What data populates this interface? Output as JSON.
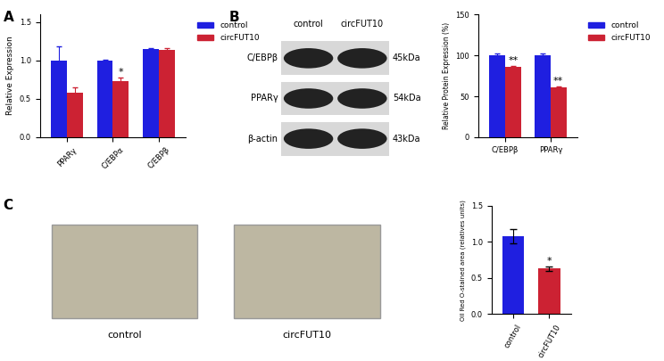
{
  "panel_labels": [
    "A",
    "B",
    "C"
  ],
  "blot": {
    "lanes": [
      "control",
      "circFUT10"
    ],
    "rows": [
      {
        "name": "C/EBPβ",
        "size": "45kDa"
      },
      {
        "name": "PPARγ",
        "size": "54kDa"
      },
      {
        "name": "β-actin",
        "size": "43kDa"
      }
    ]
  },
  "images": {
    "labels": [
      "control",
      "circFUT10"
    ]
  },
  "chart_data": [
    {
      "type": "bar",
      "y_label": "Relative Expression",
      "categories": [
        "PPARγ",
        "C/EBPα",
        "C/EBPβ"
      ],
      "series": [
        {
          "name": "control",
          "color": "#1f1fe0",
          "values": [
            1.0,
            1.0,
            1.15
          ],
          "errors": [
            0.18,
            0.01,
            0.01
          ]
        },
        {
          "name": "circFUT10",
          "color": "#cc2233",
          "values": [
            0.58,
            0.73,
            1.14
          ],
          "errors": [
            0.07,
            0.05,
            0.02
          ]
        }
      ],
      "annotations": [
        {
          "series": "circFUT10",
          "category": "C/EBPα",
          "text": "*"
        }
      ],
      "ylim": [
        0,
        1.6
      ],
      "yticks": [
        0.0,
        0.5,
        1.0,
        1.5
      ],
      "grid": false,
      "legend": "upper left"
    },
    {
      "type": "bar",
      "y_label": "Relative Protein Expression (%)",
      "categories": [
        "C/EBPβ",
        "PPARγ"
      ],
      "series": [
        {
          "name": "control",
          "color": "#1f1fe0",
          "values": [
            100,
            100
          ],
          "errors": [
            2,
            2
          ]
        },
        {
          "name": "circFUT10",
          "color": "#cc2233",
          "values": [
            86,
            61
          ],
          "errors": [
            1,
            1
          ]
        }
      ],
      "annotations": [
        {
          "series": "circFUT10",
          "category": "C/EBPβ",
          "text": "**"
        },
        {
          "series": "circFUT10",
          "category": "PPARγ",
          "text": "**"
        }
      ],
      "ylim": [
        0,
        150
      ],
      "yticks": [
        0,
        50,
        100,
        150
      ],
      "grid": false,
      "legend": "upper left"
    },
    {
      "type": "bar",
      "y_label": "Oil Red O-stained area (relatives units)",
      "categories": [
        "control",
        "circFUT10"
      ],
      "values": [
        1.08,
        0.63
      ],
      "errors": [
        0.1,
        0.03
      ],
      "colors": [
        "#1f1fe0",
        "#cc2233"
      ],
      "annotations": [
        {
          "category": "circFUT10",
          "text": "*"
        }
      ],
      "ylim": [
        0,
        1.5
      ],
      "yticks": [
        0.0,
        0.5,
        1.0,
        1.5
      ],
      "grid": false
    }
  ]
}
